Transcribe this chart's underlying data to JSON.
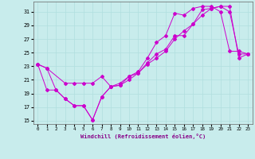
{
  "xlabel": "Windchill (Refroidissement éolien,°C)",
  "background_color": "#c8ecec",
  "grid_color": "#b0dede",
  "line_color": "#cc00cc",
  "xlim": [
    -0.5,
    23.5
  ],
  "ylim": [
    14.5,
    32.5
  ],
  "yticks": [
    15,
    17,
    19,
    21,
    23,
    25,
    27,
    29,
    31
  ],
  "xticks": [
    0,
    1,
    2,
    3,
    4,
    5,
    6,
    7,
    8,
    9,
    10,
    11,
    12,
    13,
    14,
    15,
    16,
    17,
    18,
    19,
    20,
    21,
    22,
    23
  ],
  "line1_x": [
    0,
    1,
    3,
    4,
    5,
    6,
    7,
    8,
    9,
    10,
    11,
    12,
    13,
    14,
    15,
    16,
    17,
    18,
    19,
    20,
    21,
    22,
    23
  ],
  "line1_y": [
    23.3,
    22.7,
    20.5,
    20.5,
    20.5,
    20.5,
    21.5,
    20.0,
    20.5,
    21.5,
    22.0,
    23.3,
    24.2,
    25.2,
    27.0,
    28.2,
    29.2,
    31.3,
    31.5,
    31.8,
    31.8,
    24.2,
    24.8
  ],
  "line2_x": [
    0,
    1,
    2,
    3,
    4,
    5,
    6,
    7,
    8,
    9,
    10,
    11,
    12,
    13,
    14,
    15,
    16,
    17,
    18,
    19,
    20,
    21,
    22,
    23
  ],
  "line2_y": [
    23.3,
    22.7,
    19.5,
    18.2,
    17.2,
    17.2,
    15.1,
    18.5,
    20.0,
    20.2,
    21.5,
    22.2,
    24.2,
    26.5,
    27.5,
    30.8,
    30.5,
    31.5,
    31.8,
    31.8,
    31.0,
    25.2,
    25.2,
    24.8
  ],
  "line3_x": [
    0,
    1,
    2,
    3,
    4,
    5,
    6,
    7,
    8,
    9,
    10,
    11,
    12,
    13,
    14,
    15,
    16,
    17,
    18,
    19,
    20,
    21,
    22,
    23
  ],
  "line3_y": [
    23.3,
    19.5,
    19.5,
    18.2,
    17.2,
    17.2,
    15.1,
    18.5,
    20.0,
    20.2,
    21.0,
    22.0,
    23.5,
    24.8,
    25.5,
    27.5,
    27.5,
    29.2,
    30.5,
    31.5,
    31.8,
    31.0,
    24.8,
    24.8
  ]
}
